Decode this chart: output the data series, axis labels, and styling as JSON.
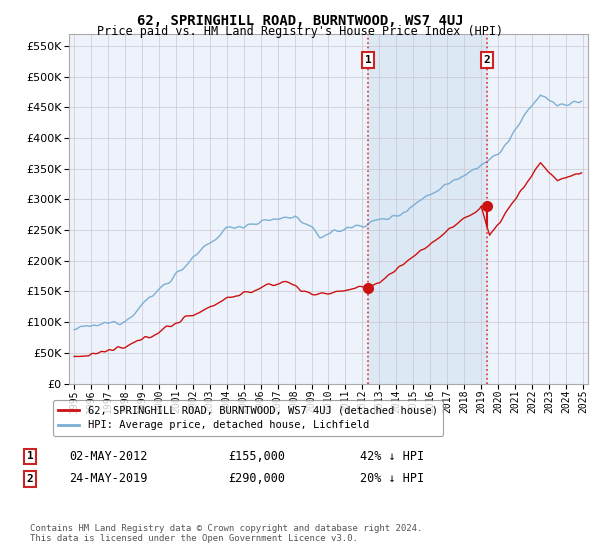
{
  "title": "62, SPRINGHILL ROAD, BURNTWOOD, WS7 4UJ",
  "subtitle": "Price paid vs. HM Land Registry's House Price Index (HPI)",
  "hpi_color": "#7bafd4",
  "price_color": "#cc1111",
  "transaction1_x": 2012.333,
  "transaction1_price": 155000,
  "transaction2_x": 2019.333,
  "transaction2_price": 290000,
  "legend_entry1": "62, SPRINGHILL ROAD, BURNTWOOD, WS7 4UJ (detached house)",
  "legend_entry2": "HPI: Average price, detached house, Lichfield",
  "annotation1_date": "02-MAY-2012",
  "annotation1_price": "£155,000",
  "annotation1_hpi": "42% ↓ HPI",
  "annotation2_date": "24-MAY-2019",
  "annotation2_price": "£290,000",
  "annotation2_hpi": "20% ↓ HPI",
  "footer": "Contains HM Land Registry data © Crown copyright and database right 2024.\nThis data is licensed under the Open Government Licence v3.0.",
  "ylim": [
    0,
    570000
  ],
  "yticks": [
    0,
    50000,
    100000,
    150000,
    200000,
    250000,
    300000,
    350000,
    400000,
    450000,
    500000,
    550000
  ],
  "background_color": "#eef2fb",
  "shade_color": "#dde8f5"
}
